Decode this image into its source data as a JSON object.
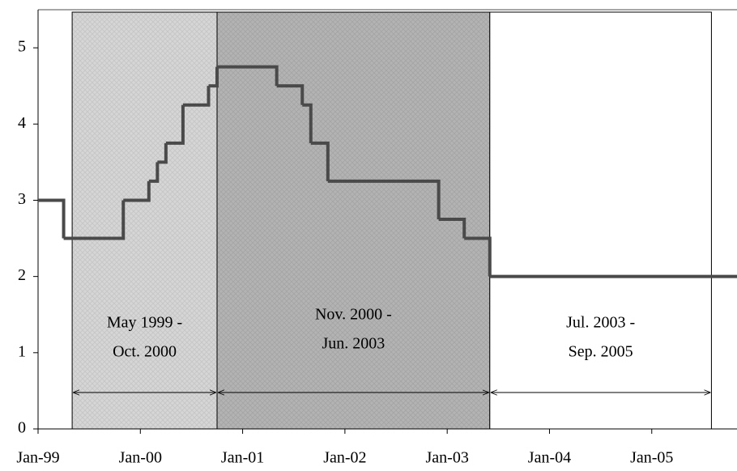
{
  "chart_data": {
    "type": "step",
    "x": [
      "1999-01",
      "1999-04",
      "1999-11",
      "2000-02",
      "2000-03",
      "2000-04",
      "2000-06",
      "2000-09",
      "2000-10",
      "2001-05",
      "2001-08",
      "2001-09",
      "2001-11",
      "2002-12",
      "2003-03",
      "2003-06",
      "2005-11"
    ],
    "series": [
      {
        "color": "#4a4a4a",
        "values": [
          3.0,
          2.5,
          3.0,
          3.25,
          3.5,
          3.75,
          4.25,
          4.5,
          4.75,
          4.5,
          4.25,
          3.75,
          3.25,
          2.75,
          2.5,
          2.0,
          2.0
        ]
      }
    ],
    "xlim": [
      "1999-01",
      "2005-11"
    ],
    "xticks": [
      {
        "value": "1999-01",
        "label": "Jan-99"
      },
      {
        "value": "2000-01",
        "label": "Jan-00"
      },
      {
        "value": "2001-01",
        "label": "Jan-01"
      },
      {
        "value": "2002-01",
        "label": "Jan-02"
      },
      {
        "value": "2003-01",
        "label": "Jan-03"
      },
      {
        "value": "2004-01",
        "label": "Jan-04"
      },
      {
        "value": "2005-01",
        "label": "Jan-05"
      }
    ],
    "ylim": [
      0,
      5.5
    ],
    "yticks": [
      0,
      1,
      2,
      3,
      4,
      5
    ],
    "periods": [
      {
        "start": "1999-05",
        "end": "2000-10",
        "color": "#d6d6d6",
        "label": [
          "May 1999 -",
          "Oct. 2000"
        ]
      },
      {
        "start": "2000-10",
        "end": "2003-06",
        "color": "#b3b3b3",
        "label": [
          "Nov. 2000 -",
          "Jun. 2003"
        ]
      },
      {
        "start": "2003-06",
        "end": "2005-08",
        "color": "#ffffff",
        "label": [
          "Jul. 2003 -",
          "Sep. 2005"
        ]
      }
    ]
  }
}
